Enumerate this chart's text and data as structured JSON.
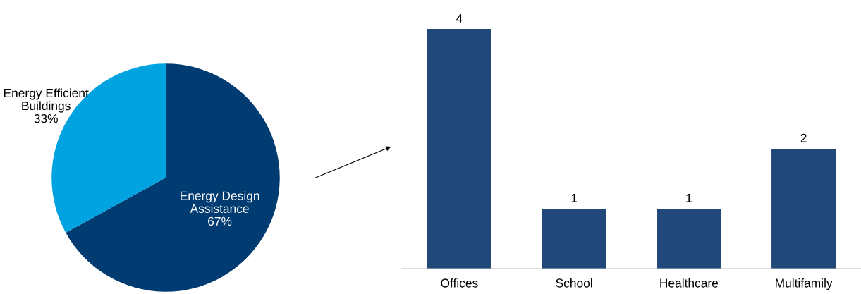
{
  "chart_data": [
    {
      "type": "pie",
      "categories": [
        "Energy Design\nAssistance",
        "Energy Efficient\nBuildings"
      ],
      "values": [
        67,
        33
      ],
      "colors": [
        "#003b71",
        "#00a3e0"
      ],
      "value_labels": [
        "67%",
        "33%"
      ]
    },
    {
      "type": "bar",
      "categories": [
        "Offices",
        "School",
        "Healthcare",
        "Multifamily"
      ],
      "values": [
        4,
        1,
        1,
        2
      ],
      "color": "#22487a",
      "data_labels": true
    }
  ]
}
